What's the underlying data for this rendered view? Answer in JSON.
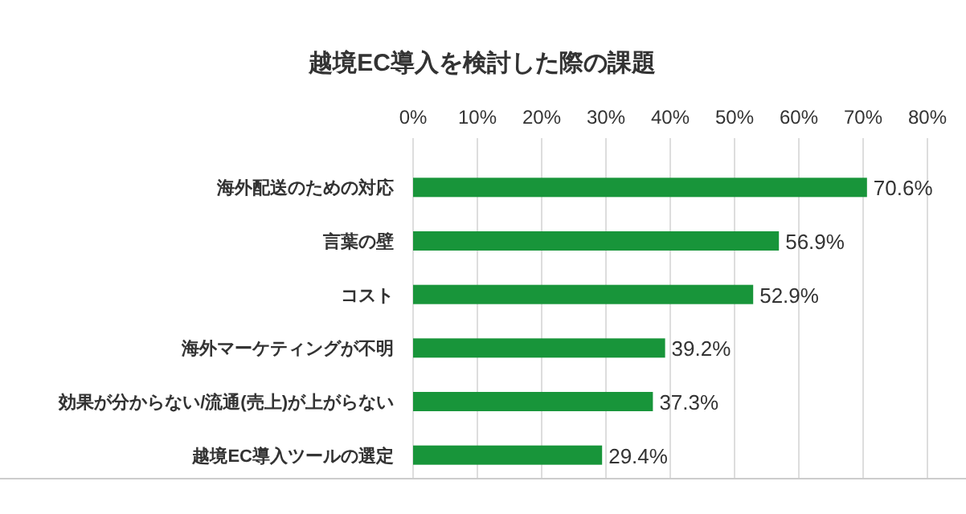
{
  "chart_data": {
    "type": "bar",
    "orientation": "horizontal",
    "title": "越境EC導入を検討した際の課題",
    "categories": [
      "海外配送のための対応",
      "言葉の壁",
      "コスト",
      "海外マーケティングが不明",
      "効果が分からない/流通(売上)が上がらない",
      "越境EC導入ツールの選定"
    ],
    "values": [
      70.6,
      56.9,
      52.9,
      39.2,
      37.3,
      29.4
    ],
    "value_labels": [
      "70.6%",
      "56.9%",
      "52.9%",
      "39.2%",
      "37.3%",
      "29.4%"
    ],
    "color": "#18953a",
    "xlim": [
      0,
      80
    ],
    "xticks": [
      {
        "value": 0,
        "label": "0%"
      },
      {
        "value": 10,
        "label": "10%"
      },
      {
        "value": 20,
        "label": "20%"
      },
      {
        "value": 30,
        "label": "30%"
      },
      {
        "value": 40,
        "label": "40%"
      },
      {
        "value": 50,
        "label": "50%"
      },
      {
        "value": 60,
        "label": "60%"
      },
      {
        "value": 70,
        "label": "70%"
      },
      {
        "value": 80,
        "label": "80%"
      }
    ],
    "grid": "x"
  }
}
